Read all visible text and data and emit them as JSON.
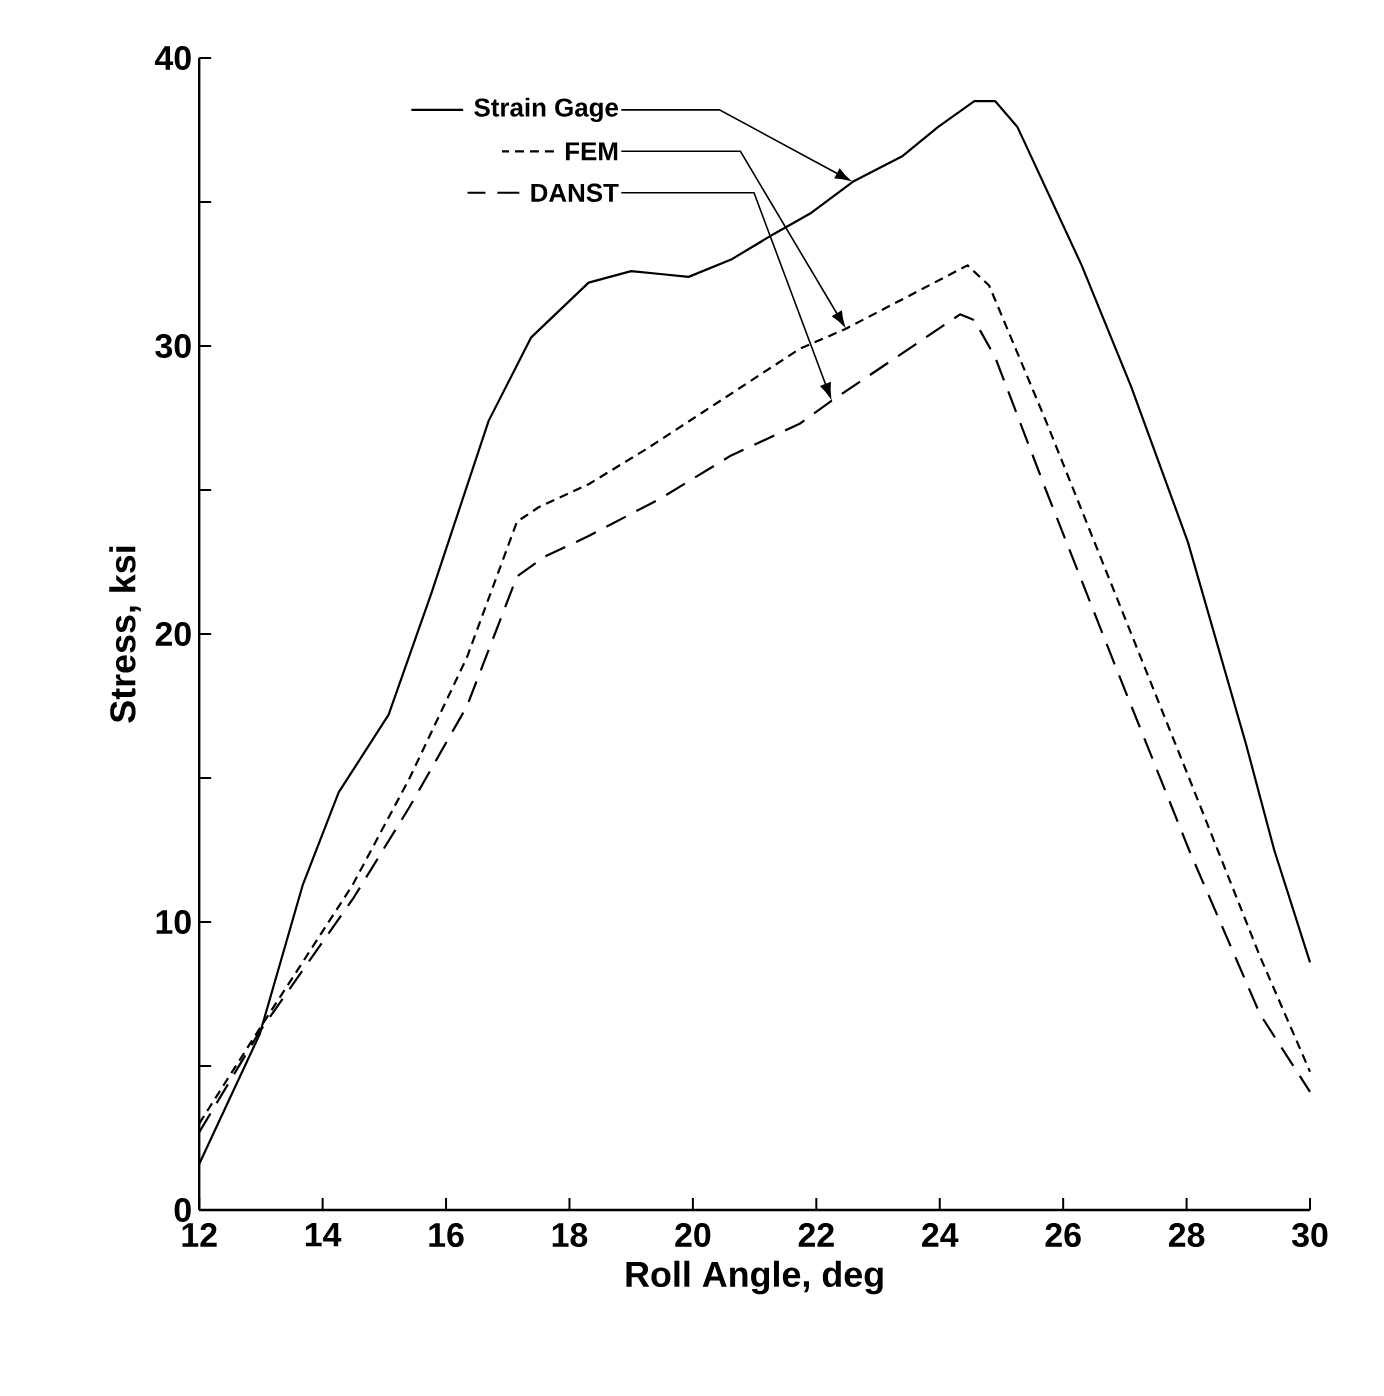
{
  "chart_data": {
    "type": "line",
    "xlabel": "Roll Angle, deg",
    "ylabel": "Stress, ksi",
    "xlim": [
      12,
      30
    ],
    "ylim": [
      0,
      40
    ],
    "xticks": [
      12,
      14,
      16,
      18,
      20,
      22,
      24,
      26,
      28,
      30
    ],
    "yticks": [
      0,
      {
        "value": 5,
        "label": null
      },
      10,
      {
        "value": 15,
        "label": null
      },
      20,
      {
        "value": 25,
        "label": null
      },
      30,
      {
        "value": 35,
        "label": null
      },
      40
    ],
    "grid": false,
    "legend": "top left",
    "marker": "none",
    "series": [
      {
        "name": "Strain Gage",
        "color": "#000000",
        "line_style": "solid",
        "x": [
          12,
          12.98,
          13.68,
          14.26,
          15.07,
          15.76,
          16.69,
          17.38,
          18.31,
          19.0,
          19.47,
          19.93,
          20.62,
          21.32,
          21.9,
          22.59,
          23.4,
          23.97,
          24.56,
          24.9,
          25.26,
          26.3,
          27.1,
          28.02,
          28.96,
          29.42,
          30
        ],
        "values": [
          1.6,
          6.1,
          11.3,
          14.5,
          17.2,
          21.4,
          27.4,
          30.3,
          32.2,
          32.6,
          32.5,
          32.4,
          33.0,
          33.9,
          34.6,
          35.7,
          36.6,
          37.6,
          38.5,
          38.5,
          37.6,
          32.8,
          28.6,
          23.2,
          16.2,
          12.5,
          8.6
        ]
      },
      {
        "name": "FEM",
        "color": "#000000",
        "line_style": "dotted",
        "x": [
          12,
          12.98,
          14.49,
          15.41,
          16.34,
          17.15,
          17.5,
          18.31,
          19.23,
          20.16,
          21.73,
          22.48,
          24.45,
          24.8,
          25.72,
          26.88,
          28.04,
          29.19,
          30
        ],
        "values": [
          3.0,
          6.3,
          11.3,
          15.0,
          19.2,
          23.9,
          24.4,
          25.2,
          26.4,
          27.7,
          29.9,
          30.6,
          32.8,
          32.1,
          27.4,
          21.2,
          15.0,
          8.8,
          4.8
        ]
      },
      {
        "name": "DANST",
        "color": "#000000",
        "line_style": "dashed",
        "x": [
          12,
          12.98,
          14.49,
          15.41,
          16.34,
          17.15,
          17.61,
          18.31,
          19.47,
          20.62,
          21.73,
          22.25,
          24.33,
          24.56,
          24.9,
          25.72,
          26.88,
          28.04,
          29.19,
          30
        ],
        "values": [
          2.7,
          6.2,
          10.8,
          14.0,
          17.5,
          22.0,
          22.7,
          23.4,
          24.7,
          26.2,
          27.3,
          28.1,
          31.1,
          30.9,
          29.6,
          25.0,
          18.7,
          12.5,
          6.8,
          4.1
        ]
      }
    ]
  }
}
